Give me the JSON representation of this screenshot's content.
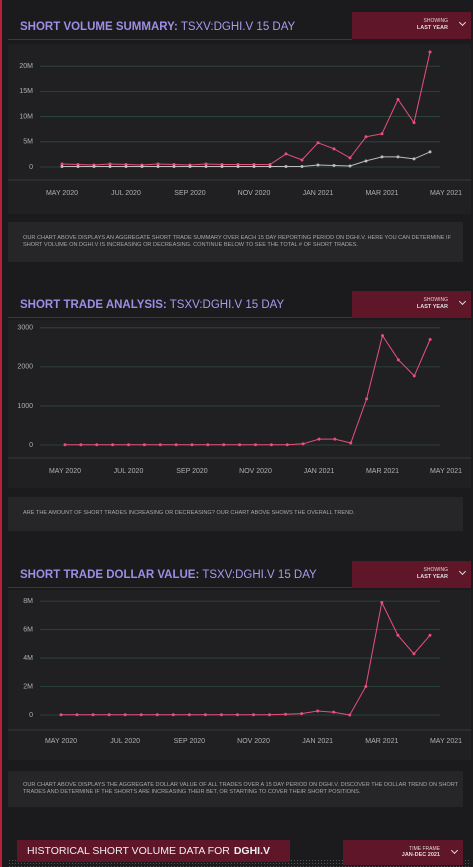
{
  "chart_data": [
    {
      "type": "line",
      "title": "SHORT VOLUME SUMMARY:",
      "subtitle": "TSXV:DGHI.V 15 DAY",
      "dropdown_label": "SHOWING",
      "dropdown_value": "LAST YEAR",
      "description": "OUR CHART ABOVE DISPLAYS AN AGGREGATE SHORT TRADE SUMMARY OVER EACH 15 DAY REPORTING PERIOD ON DGHI.V. HERE YOU CAN DETERMINE IF SHORT VOLUME ON DGHI.V IS INCREASING OR DECREASING. CONTINUE BELOW TO SEE THE TOTAL # OF SHORT TRADES.",
      "categories": [
        "MAY 2020",
        null,
        null,
        null,
        "JUL 2020",
        null,
        null,
        null,
        "SEP 2020",
        null,
        null,
        null,
        "NOV 2020",
        null,
        null,
        null,
        "JAN 2021",
        null,
        null,
        null,
        "MAR 2021",
        null,
        null,
        null,
        "MAY 2021"
      ],
      "series": [
        {
          "color": "#e8507a",
          "values": [
            600000,
            500000,
            400000,
            600000,
            500000,
            400000,
            600000,
            500000,
            400000,
            600000,
            500000,
            500000,
            500000,
            500000,
            2600000,
            1400000,
            4800000,
            3600000,
            1800000,
            6000000,
            6600000,
            13400000,
            8800000,
            22800000,
            null
          ]
        },
        {
          "color": "#bdbdbd",
          "values": [
            100000,
            100000,
            100000,
            100000,
            100000,
            100000,
            100000,
            100000,
            100000,
            100000,
            100000,
            100000,
            100000,
            100000,
            100000,
            100000,
            400000,
            300000,
            200000,
            1200000,
            2000000,
            2000000,
            1600000,
            3000000,
            null
          ]
        }
      ],
      "ylim": [
        0,
        24000000
      ],
      "yticks": [
        0,
        {
          "value": 5000000,
          "label": "5M"
        },
        {
          "value": 10000000,
          "label": "10M"
        },
        {
          "value": 15000000,
          "label": "15M"
        },
        {
          "value": 20000000,
          "label": "20M"
        }
      ],
      "grid": true
    },
    {
      "type": "line",
      "title": "SHORT TRADE ANALYSIS:",
      "subtitle": "TSXV:DGHI.V 15 DAY",
      "dropdown_label": "SHOWING",
      "dropdown_value": "LAST YEAR",
      "description": "ARE THE AMOUNT OF SHORT TRADES INCREASING OR DECREASING? OUR CHART ABOVE SHOWS THE OVERALL TREND.",
      "categories": [
        "MAY 2020",
        null,
        null,
        null,
        "JUL 2020",
        null,
        null,
        null,
        "SEP 2020",
        null,
        null,
        null,
        "NOV 2020",
        null,
        null,
        null,
        "JAN 2021",
        null,
        null,
        null,
        "MAR 2021",
        null,
        null,
        null,
        "MAY 2021"
      ],
      "series": [
        {
          "color": "#e8507a",
          "values": [
            5,
            5,
            5,
            5,
            5,
            5,
            5,
            5,
            5,
            5,
            5,
            5,
            5,
            5,
            5,
            30,
            150,
            150,
            50,
            1180,
            2800,
            2180,
            1770,
            2700,
            null
          ]
        }
      ],
      "ylim": [
        0,
        3200
      ],
      "yticks": [
        0,
        1000,
        2000,
        3000
      ],
      "grid": true
    },
    {
      "type": "line",
      "title": "SHORT TRADE DOLLAR VALUE:",
      "subtitle": "TSXV:DGHI.V 15 DAY",
      "dropdown_label": "SHOWING",
      "dropdown_value": "LAST YEAR",
      "description": "OUR CHART ABOVE DISPLAYS THE AGGREGATE DOLLAR VALUE OF ALL TRADES OVER A 15 DAY PERIOD ON DGHI.V. DISCOVER THE DOLLAR TREND ON SHORT TRADES AND DETERMINE IF THE SHORTS ARE INCREASING THEIR BET, OR STARTING TO COVER THEIR SHORT POSITIONS.",
      "categories": [
        "MAY 2020",
        null,
        null,
        null,
        "JUL 2020",
        null,
        null,
        null,
        "SEP 2020",
        null,
        null,
        null,
        "NOV 2020",
        null,
        null,
        null,
        "JAN 2021",
        null,
        null,
        null,
        "MAR 2021",
        null,
        null,
        null,
        "MAY 2021"
      ],
      "series": [
        {
          "color": "#e8507a",
          "values": [
            20000,
            20000,
            20000,
            20000,
            20000,
            20000,
            20000,
            20000,
            20000,
            20000,
            20000,
            20000,
            20000,
            20000,
            50000,
            100000,
            280000,
            200000,
            0,
            2000000,
            7900000,
            5600000,
            4300000,
            5600000,
            null
          ]
        }
      ],
      "ylim": [
        0,
        8500000
      ],
      "yticks": [
        0,
        {
          "value": 2000000,
          "label": "2M"
        },
        {
          "value": 4000000,
          "label": "4M"
        },
        {
          "value": 6000000,
          "label": "6M"
        },
        {
          "value": 8000000,
          "label": "8M"
        }
      ],
      "grid": true
    }
  ],
  "history": {
    "title": "HISTORICAL SHORT VOLUME DATA FOR",
    "ticker": "DGHI.V",
    "dropdown_label": "TIME FRAME",
    "dropdown_value": "JAN-DEC 2021"
  }
}
